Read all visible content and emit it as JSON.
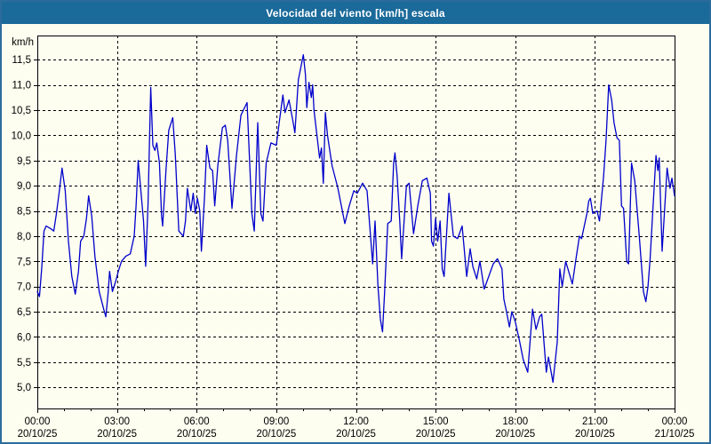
{
  "header": {
    "title": "Velocidad del viento [km/h] escala",
    "bg_color": "#1a6a9a",
    "text_color": "#ffffff"
  },
  "window": {
    "bg_color": "#fdfdf0",
    "border_color": "#2c6c9c"
  },
  "chart_data": {
    "type": "line",
    "title": "Velocidad del viento [km/h] escala",
    "ylabel": "km/h",
    "xlabel": "",
    "legend": [],
    "grid": "on-dashed-black",
    "line_color": "#0000cc",
    "axis_color": "#000000",
    "tick_label_color": "#000000",
    "ylim": [
      4.58,
      11.98
    ],
    "xlim_hours": [
      0,
      24
    ],
    "y_ticks": [
      {
        "value": 11.5,
        "label": "11,5"
      },
      {
        "value": 11.0,
        "label": "11,0"
      },
      {
        "value": 10.5,
        "label": "10,5"
      },
      {
        "value": 10.0,
        "label": "10,0"
      },
      {
        "value": 9.5,
        "label": "9,5"
      },
      {
        "value": 9.0,
        "label": "9,0"
      },
      {
        "value": 8.5,
        "label": "8,5"
      },
      {
        "value": 8.0,
        "label": "8,0"
      },
      {
        "value": 7.5,
        "label": "7,5"
      },
      {
        "value": 7.0,
        "label": "7,0"
      },
      {
        "value": 6.5,
        "label": "6,5"
      },
      {
        "value": 6.0,
        "label": "6,0"
      },
      {
        "value": 5.5,
        "label": "5,5"
      },
      {
        "value": 5.0,
        "label": "5,0"
      }
    ],
    "x_ticks": [
      {
        "hour": 0,
        "time": "00:00",
        "date": "20/10/25"
      },
      {
        "hour": 3,
        "time": "03:00",
        "date": "20/10/25"
      },
      {
        "hour": 6,
        "time": "06:00",
        "date": "20/10/25"
      },
      {
        "hour": 9,
        "time": "09:00",
        "date": "20/10/25"
      },
      {
        "hour": 12,
        "time": "12:00",
        "date": "20/10/25"
      },
      {
        "hour": 15,
        "time": "15:00",
        "date": "20/10/25"
      },
      {
        "hour": 18,
        "time": "18:00",
        "date": "20/10/25"
      },
      {
        "hour": 21,
        "time": "21:00",
        "date": "20/10/25"
      },
      {
        "hour": 24,
        "time": "00:00",
        "date": "21/10/25"
      }
    ],
    "points": [
      [
        0.0,
        6.9
      ],
      [
        0.08,
        6.8
      ],
      [
        0.17,
        7.4
      ],
      [
        0.25,
        8.1
      ],
      [
        0.33,
        8.2
      ],
      [
        0.5,
        8.15
      ],
      [
        0.62,
        8.1
      ],
      [
        0.72,
        8.45
      ],
      [
        0.83,
        8.9
      ],
      [
        0.93,
        9.35
      ],
      [
        1.05,
        8.9
      ],
      [
        1.17,
        7.9
      ],
      [
        1.3,
        7.2
      ],
      [
        1.43,
        6.85
      ],
      [
        1.55,
        7.3
      ],
      [
        1.63,
        7.9
      ],
      [
        1.75,
        8.0
      ],
      [
        1.85,
        8.35
      ],
      [
        1.93,
        8.8
      ],
      [
        2.05,
        8.4
      ],
      [
        2.17,
        7.6
      ],
      [
        2.33,
        6.9
      ],
      [
        2.5,
        6.55
      ],
      [
        2.58,
        6.4
      ],
      [
        2.67,
        6.9
      ],
      [
        2.72,
        7.3
      ],
      [
        2.83,
        6.9
      ],
      [
        2.95,
        7.1
      ],
      [
        3.05,
        7.3
      ],
      [
        3.17,
        7.5
      ],
      [
        3.33,
        7.6
      ],
      [
        3.5,
        7.65
      ],
      [
        3.65,
        8.0
      ],
      [
        3.72,
        8.6
      ],
      [
        3.8,
        9.5
      ],
      [
        3.9,
        8.9
      ],
      [
        4.0,
        8.3
      ],
      [
        4.08,
        7.4
      ],
      [
        4.17,
        8.65
      ],
      [
        4.27,
        10.95
      ],
      [
        4.35,
        9.8
      ],
      [
        4.43,
        9.7
      ],
      [
        4.5,
        9.85
      ],
      [
        4.6,
        9.45
      ],
      [
        4.68,
        8.4
      ],
      [
        4.72,
        8.2
      ],
      [
        4.85,
        9.35
      ],
      [
        4.95,
        10.1
      ],
      [
        5.1,
        10.35
      ],
      [
        5.2,
        9.6
      ],
      [
        5.33,
        8.1
      ],
      [
        5.5,
        8.0
      ],
      [
        5.58,
        8.3
      ],
      [
        5.65,
        8.95
      ],
      [
        5.78,
        8.5
      ],
      [
        5.87,
        8.85
      ],
      [
        5.95,
        8.45
      ],
      [
        6.03,
        8.75
      ],
      [
        6.12,
        8.5
      ],
      [
        6.18,
        7.7
      ],
      [
        6.3,
        8.8
      ],
      [
        6.38,
        9.8
      ],
      [
        6.5,
        9.35
      ],
      [
        6.6,
        9.3
      ],
      [
        6.68,
        8.6
      ],
      [
        6.8,
        9.4
      ],
      [
        6.97,
        10.15
      ],
      [
        7.08,
        10.2
      ],
      [
        7.17,
        9.9
      ],
      [
        7.33,
        8.55
      ],
      [
        7.5,
        9.6
      ],
      [
        7.67,
        10.4
      ],
      [
        7.9,
        10.65
      ],
      [
        8.08,
        8.45
      ],
      [
        8.17,
        8.1
      ],
      [
        8.3,
        10.25
      ],
      [
        8.42,
        8.45
      ],
      [
        8.5,
        8.3
      ],
      [
        8.62,
        9.45
      ],
      [
        8.8,
        9.85
      ],
      [
        9.0,
        9.8
      ],
      [
        9.12,
        10.3
      ],
      [
        9.25,
        10.8
      ],
      [
        9.33,
        10.45
      ],
      [
        9.48,
        10.7
      ],
      [
        9.62,
        10.3
      ],
      [
        9.7,
        10.05
      ],
      [
        9.83,
        11.1
      ],
      [
        10.02,
        11.6
      ],
      [
        10.1,
        11.2
      ],
      [
        10.15,
        10.55
      ],
      [
        10.23,
        11.05
      ],
      [
        10.32,
        10.75
      ],
      [
        10.37,
        11.0
      ],
      [
        10.42,
        10.5
      ],
      [
        10.63,
        9.55
      ],
      [
        10.7,
        9.75
      ],
      [
        10.77,
        9.05
      ],
      [
        10.85,
        10.45
      ],
      [
        10.93,
        10.0
      ],
      [
        11.1,
        9.4
      ],
      [
        11.32,
        8.95
      ],
      [
        11.58,
        8.25
      ],
      [
        11.75,
        8.6
      ],
      [
        11.92,
        8.9
      ],
      [
        12.05,
        8.85
      ],
      [
        12.25,
        9.05
      ],
      [
        12.42,
        8.9
      ],
      [
        12.63,
        7.45
      ],
      [
        12.72,
        8.3
      ],
      [
        12.83,
        7.0
      ],
      [
        12.92,
        6.35
      ],
      [
        13.0,
        6.1
      ],
      [
        13.08,
        6.9
      ],
      [
        13.2,
        8.25
      ],
      [
        13.33,
        8.3
      ],
      [
        13.42,
        9.45
      ],
      [
        13.47,
        9.65
      ],
      [
        13.55,
        9.2
      ],
      [
        13.65,
        8.3
      ],
      [
        13.72,
        7.55
      ],
      [
        13.9,
        9.0
      ],
      [
        14.0,
        9.05
      ],
      [
        14.17,
        8.05
      ],
      [
        14.33,
        8.6
      ],
      [
        14.5,
        9.1
      ],
      [
        14.67,
        9.15
      ],
      [
        14.8,
        8.85
      ],
      [
        14.85,
        7.9
      ],
      [
        14.92,
        7.8
      ],
      [
        15.0,
        8.35
      ],
      [
        15.08,
        7.9
      ],
      [
        15.17,
        8.3
      ],
      [
        15.25,
        7.35
      ],
      [
        15.32,
        7.2
      ],
      [
        15.5,
        8.85
      ],
      [
        15.67,
        8.0
      ],
      [
        15.83,
        7.95
      ],
      [
        16.0,
        8.2
      ],
      [
        16.17,
        7.2
      ],
      [
        16.3,
        7.75
      ],
      [
        16.4,
        7.4
      ],
      [
        16.55,
        7.15
      ],
      [
        16.67,
        7.5
      ],
      [
        16.83,
        6.95
      ],
      [
        17.0,
        7.2
      ],
      [
        17.17,
        7.45
      ],
      [
        17.33,
        7.55
      ],
      [
        17.5,
        7.35
      ],
      [
        17.57,
        6.75
      ],
      [
        17.67,
        6.5
      ],
      [
        17.78,
        6.2
      ],
      [
        17.87,
        6.5
      ],
      [
        18.0,
        6.3
      ],
      [
        18.17,
        5.9
      ],
      [
        18.3,
        5.55
      ],
      [
        18.47,
        5.3
      ],
      [
        18.65,
        6.55
      ],
      [
        18.78,
        6.15
      ],
      [
        18.92,
        6.4
      ],
      [
        19.0,
        6.45
      ],
      [
        19.17,
        5.3
      ],
      [
        19.25,
        5.6
      ],
      [
        19.42,
        5.1
      ],
      [
        19.58,
        5.9
      ],
      [
        19.68,
        7.35
      ],
      [
        19.77,
        7.0
      ],
      [
        19.9,
        7.5
      ],
      [
        20.15,
        7.05
      ],
      [
        20.3,
        7.6
      ],
      [
        20.42,
        8.0
      ],
      [
        20.5,
        7.95
      ],
      [
        20.58,
        8.15
      ],
      [
        20.7,
        8.45
      ],
      [
        20.77,
        8.7
      ],
      [
        20.83,
        8.75
      ],
      [
        20.92,
        8.45
      ],
      [
        21.08,
        8.5
      ],
      [
        21.17,
        8.3
      ],
      [
        21.33,
        9.2
      ],
      [
        21.42,
        9.9
      ],
      [
        21.52,
        11.0
      ],
      [
        21.63,
        10.7
      ],
      [
        21.72,
        10.25
      ],
      [
        21.83,
        9.95
      ],
      [
        21.92,
        9.9
      ],
      [
        22.0,
        8.6
      ],
      [
        22.08,
        8.55
      ],
      [
        22.2,
        7.5
      ],
      [
        22.27,
        7.45
      ],
      [
        22.38,
        9.45
      ],
      [
        22.5,
        9.1
      ],
      [
        22.67,
        8.0
      ],
      [
        22.83,
        6.9
      ],
      [
        22.92,
        6.7
      ],
      [
        23.0,
        7.0
      ],
      [
        23.08,
        7.55
      ],
      [
        23.17,
        8.4
      ],
      [
        23.3,
        9.6
      ],
      [
        23.37,
        9.3
      ],
      [
        23.42,
        9.55
      ],
      [
        23.53,
        7.7
      ],
      [
        23.72,
        9.35
      ],
      [
        23.83,
        8.95
      ],
      [
        23.9,
        9.15
      ],
      [
        24.0,
        8.8
      ]
    ]
  }
}
